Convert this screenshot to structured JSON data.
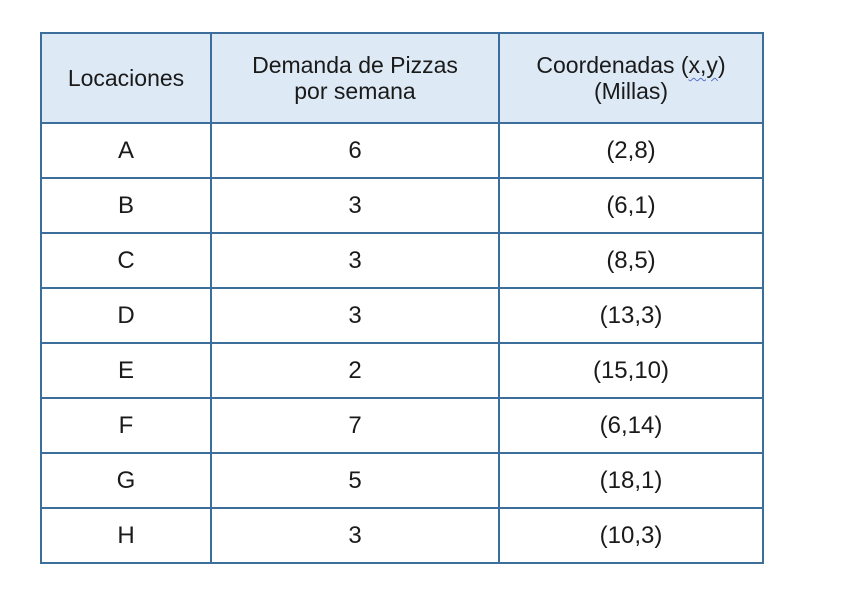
{
  "table": {
    "headers": {
      "col1": "Locaciones",
      "col2_line1": "Demanda de Pizzas",
      "col2_line2": "por semana",
      "col3_pre": "Coordenadas (",
      "col3_vars": "x,y",
      "col3_post": ")",
      "col3_line2": "(Millas)"
    },
    "rows": [
      {
        "location": "A",
        "demand": "6",
        "coords": "(2,8)"
      },
      {
        "location": "B",
        "demand": "3",
        "coords": "(6,1)"
      },
      {
        "location": "C",
        "demand": "3",
        "coords": "(8,5)"
      },
      {
        "location": "D",
        "demand": "3",
        "coords": "(13,3)"
      },
      {
        "location": "E",
        "demand": "2",
        "coords": "(15,10)"
      },
      {
        "location": "F",
        "demand": "7",
        "coords": "(6,14)"
      },
      {
        "location": "G",
        "demand": "5",
        "coords": "(18,1)"
      },
      {
        "location": "H",
        "demand": "3",
        "coords": "(10,3)"
      }
    ]
  },
  "colors": {
    "border": "#3c6e9c",
    "header_bg": "#dde9f5",
    "spellcheck_underline": "#5b6fd0"
  }
}
